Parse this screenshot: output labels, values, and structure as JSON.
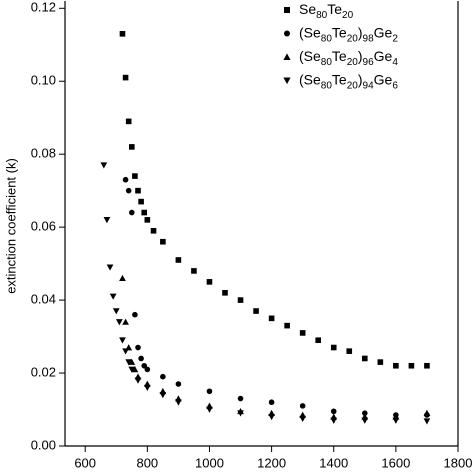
{
  "chart_data": {
    "type": "scatter",
    "ylabel": "extinction coefficient (k)",
    "xlim": [
      535,
      1800
    ],
    "ylim": [
      0,
      0.122
    ],
    "xticks": [
      600,
      800,
      1000,
      1200,
      1400,
      1600,
      1800
    ],
    "yticks": [
      {
        "value": 0,
        "label": "0.00"
      },
      {
        "value": 0.02,
        "label": "0.02"
      },
      {
        "value": 0.04,
        "label": "0.04"
      },
      {
        "value": 0.06,
        "label": "0.06"
      },
      {
        "value": 0.08,
        "label": "0.08"
      },
      {
        "value": 0.1,
        "label": "0.10"
      },
      {
        "value": 0.12,
        "label": "0.12"
      }
    ],
    "series": [
      {
        "name": "Se80Te20",
        "color": "#000000",
        "marker": "square",
        "x": [
          720,
          730,
          740,
          750,
          760,
          770,
          780,
          790,
          800,
          820,
          850,
          900,
          950,
          1000,
          1050,
          1100,
          1150,
          1200,
          1250,
          1300,
          1350,
          1400,
          1450,
          1500,
          1550,
          1600,
          1650,
          1700
        ],
        "values": [
          0.113,
          0.101,
          0.089,
          0.082,
          0.074,
          0.07,
          0.067,
          0.064,
          0.062,
          0.059,
          0.056,
          0.051,
          0.048,
          0.045,
          0.042,
          0.04,
          0.037,
          0.035,
          0.033,
          0.031,
          0.029,
          0.027,
          0.026,
          0.024,
          0.023,
          0.022,
          0.022,
          0.022
        ]
      },
      {
        "name": "(Se80Te20)98Ge2",
        "color": "#000000",
        "marker": "circle",
        "x": [
          730,
          740,
          750,
          760,
          770,
          780,
          790,
          800,
          850,
          900,
          1000,
          1100,
          1200,
          1300,
          1400,
          1500,
          1600,
          1700
        ],
        "values": [
          0.073,
          0.07,
          0.064,
          0.036,
          0.027,
          0.024,
          0.022,
          0.021,
          0.019,
          0.017,
          0.015,
          0.013,
          0.012,
          0.011,
          0.0095,
          0.009,
          0.0085,
          0.0085
        ]
      },
      {
        "name": "(Se80Te20)96Ge4",
        "color": "#000000",
        "marker": "triangle-up",
        "x": [
          720,
          730,
          740,
          750,
          760,
          770,
          800,
          850,
          900,
          1000,
          1100,
          1200,
          1300,
          1400,
          1500,
          1600,
          1700
        ],
        "values": [
          0.046,
          0.034,
          0.027,
          0.023,
          0.021,
          0.019,
          0.017,
          0.015,
          0.013,
          0.011,
          0.0095,
          0.009,
          0.0085,
          0.008,
          0.008,
          0.008,
          0.009
        ]
      },
      {
        "name": "(Se80Te20)94Ge6",
        "color": "#000000",
        "marker": "triangle-down",
        "x": [
          660,
          670,
          680,
          690,
          700,
          710,
          720,
          730,
          740,
          750,
          770,
          800,
          850,
          900,
          1000,
          1100,
          1200,
          1300,
          1400,
          1500,
          1600,
          1700
        ],
        "values": [
          0.077,
          0.062,
          0.049,
          0.041,
          0.037,
          0.034,
          0.029,
          0.026,
          0.023,
          0.021,
          0.018,
          0.016,
          0.014,
          0.012,
          0.01,
          0.009,
          0.008,
          0.0075,
          0.007,
          0.007,
          0.007,
          0.0068
        ]
      }
    ]
  }
}
